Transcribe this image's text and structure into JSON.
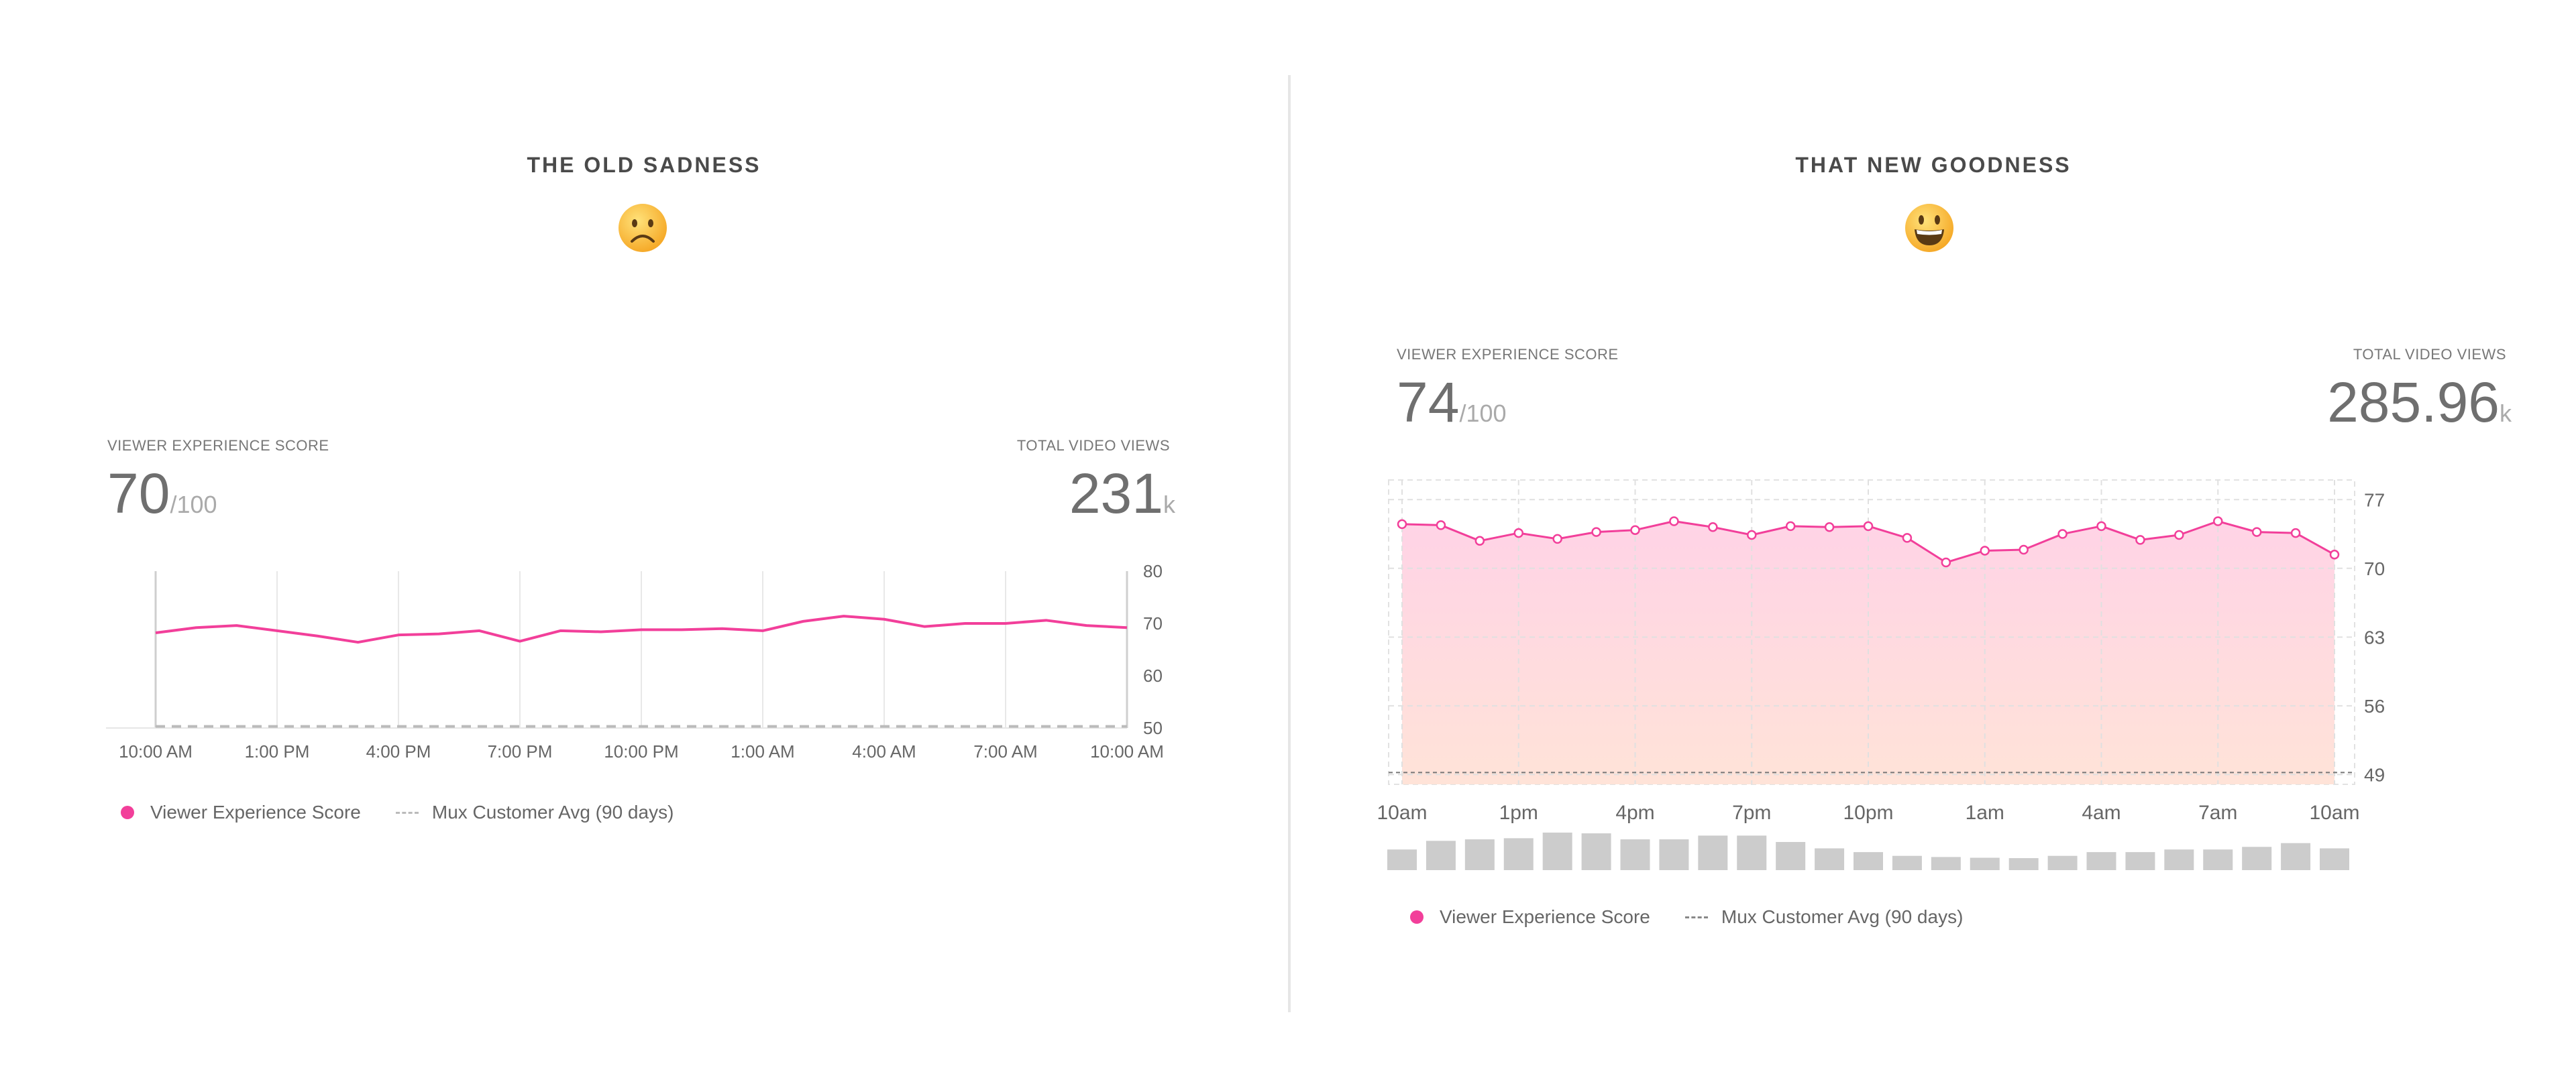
{
  "left": {
    "heading": "THE OLD SADNESS",
    "emoji": "frowning-face-icon",
    "vxs_label": "VIEWER EXPERIENCE SCORE",
    "vxs_value": "70",
    "vxs_suffix": "/100",
    "views_label": "TOTAL VIDEO VIEWS",
    "views_value": "231",
    "views_suffix": "k",
    "legend_score": "Viewer Experience Score",
    "legend_avg": "Mux Customer Avg (90 days)"
  },
  "right": {
    "heading": "THAT NEW GOODNESS",
    "emoji": "grinning-face-icon",
    "vxs_label": "VIEWER EXPERIENCE SCORE",
    "vxs_value": "74",
    "vxs_suffix": "/100",
    "views_label": "TOTAL VIDEO VIEWS",
    "views_value": "285.96",
    "views_suffix": "k",
    "legend_score": "Viewer Experience Score",
    "legend_avg": "Mux Customer Avg (90 days)"
  },
  "colors": {
    "score": "#f23f9a",
    "avg": "#bbbbbb",
    "fill_top": "#ffd3e6",
    "fill_bottom": "#ffe3d8",
    "bars": "#cccccc"
  },
  "chart_data": [
    {
      "type": "line",
      "x_ticks": [
        "10:00 AM",
        "1:00 PM",
        "4:00 PM",
        "7:00 PM",
        "10:00 PM",
        "1:00 AM",
        "4:00 AM",
        "7:00 AM",
        "10:00 AM"
      ],
      "y_ticks": [
        80,
        70,
        60,
        50
      ],
      "ylim": [
        50,
        80
      ],
      "grid": "vertical",
      "series": [
        {
          "name": "Viewer Experience Score",
          "values": [
            68.2,
            69.2,
            69.6,
            68.6,
            67.6,
            66.4,
            67.8,
            68.0,
            68.6,
            66.6,
            68.6,
            68.4,
            68.8,
            68.8,
            69.0,
            68.6,
            70.4,
            71.4,
            70.8,
            69.4,
            70.0,
            70.0,
            70.6,
            69.6,
            69.2
          ]
        },
        {
          "name": "Mux Customer Avg (90 days)",
          "values": [
            50.3,
            50.3,
            50.3,
            50.3,
            50.3,
            50.3,
            50.3,
            50.3,
            50.3,
            50.3,
            50.3,
            50.3,
            50.3,
            50.3,
            50.3,
            50.3,
            50.3,
            50.3,
            50.3,
            50.3,
            50.3,
            50.3,
            50.3,
            50.3,
            50.3
          ]
        }
      ],
      "legend": "bottom-left"
    },
    {
      "type": "area",
      "x_ticks": [
        "10am",
        "1pm",
        "4pm",
        "7pm",
        "10pm",
        "1am",
        "4am",
        "7am",
        "10am"
      ],
      "y_ticks": [
        77,
        70,
        63,
        56,
        49
      ],
      "ylim": [
        48,
        79
      ],
      "grid": "dashed",
      "series": [
        {
          "name": "Viewer Experience Score",
          "values": [
            74.5,
            74.4,
            72.8,
            73.6,
            73.0,
            73.7,
            73.9,
            74.8,
            74.2,
            73.4,
            74.3,
            74.2,
            74.3,
            73.1,
            70.6,
            71.8,
            71.9,
            73.5,
            74.3,
            72.9,
            73.4,
            74.8,
            73.7,
            73.6,
            71.4
          ]
        },
        {
          "name": "Mux Customer Avg (90 days)",
          "values": [
            49.2,
            49.2,
            49.2,
            49.2,
            49.2,
            49.2,
            49.2,
            49.2,
            49.2,
            49.2,
            49.2,
            49.2,
            49.2,
            49.2,
            49.2,
            49.2,
            49.2,
            49.2,
            49.2,
            49.2,
            49.2,
            49.2,
            49.2,
            49.2,
            49.2
          ]
        }
      ],
      "views_bars": [
        0.55,
        0.78,
        0.82,
        0.85,
        1.0,
        0.98,
        0.82,
        0.82,
        0.92,
        0.92,
        0.75,
        0.58,
        0.48,
        0.38,
        0.35,
        0.33,
        0.32,
        0.38,
        0.48,
        0.48,
        0.55,
        0.55,
        0.62,
        0.72,
        0.58
      ],
      "legend": "bottom-left"
    }
  ]
}
